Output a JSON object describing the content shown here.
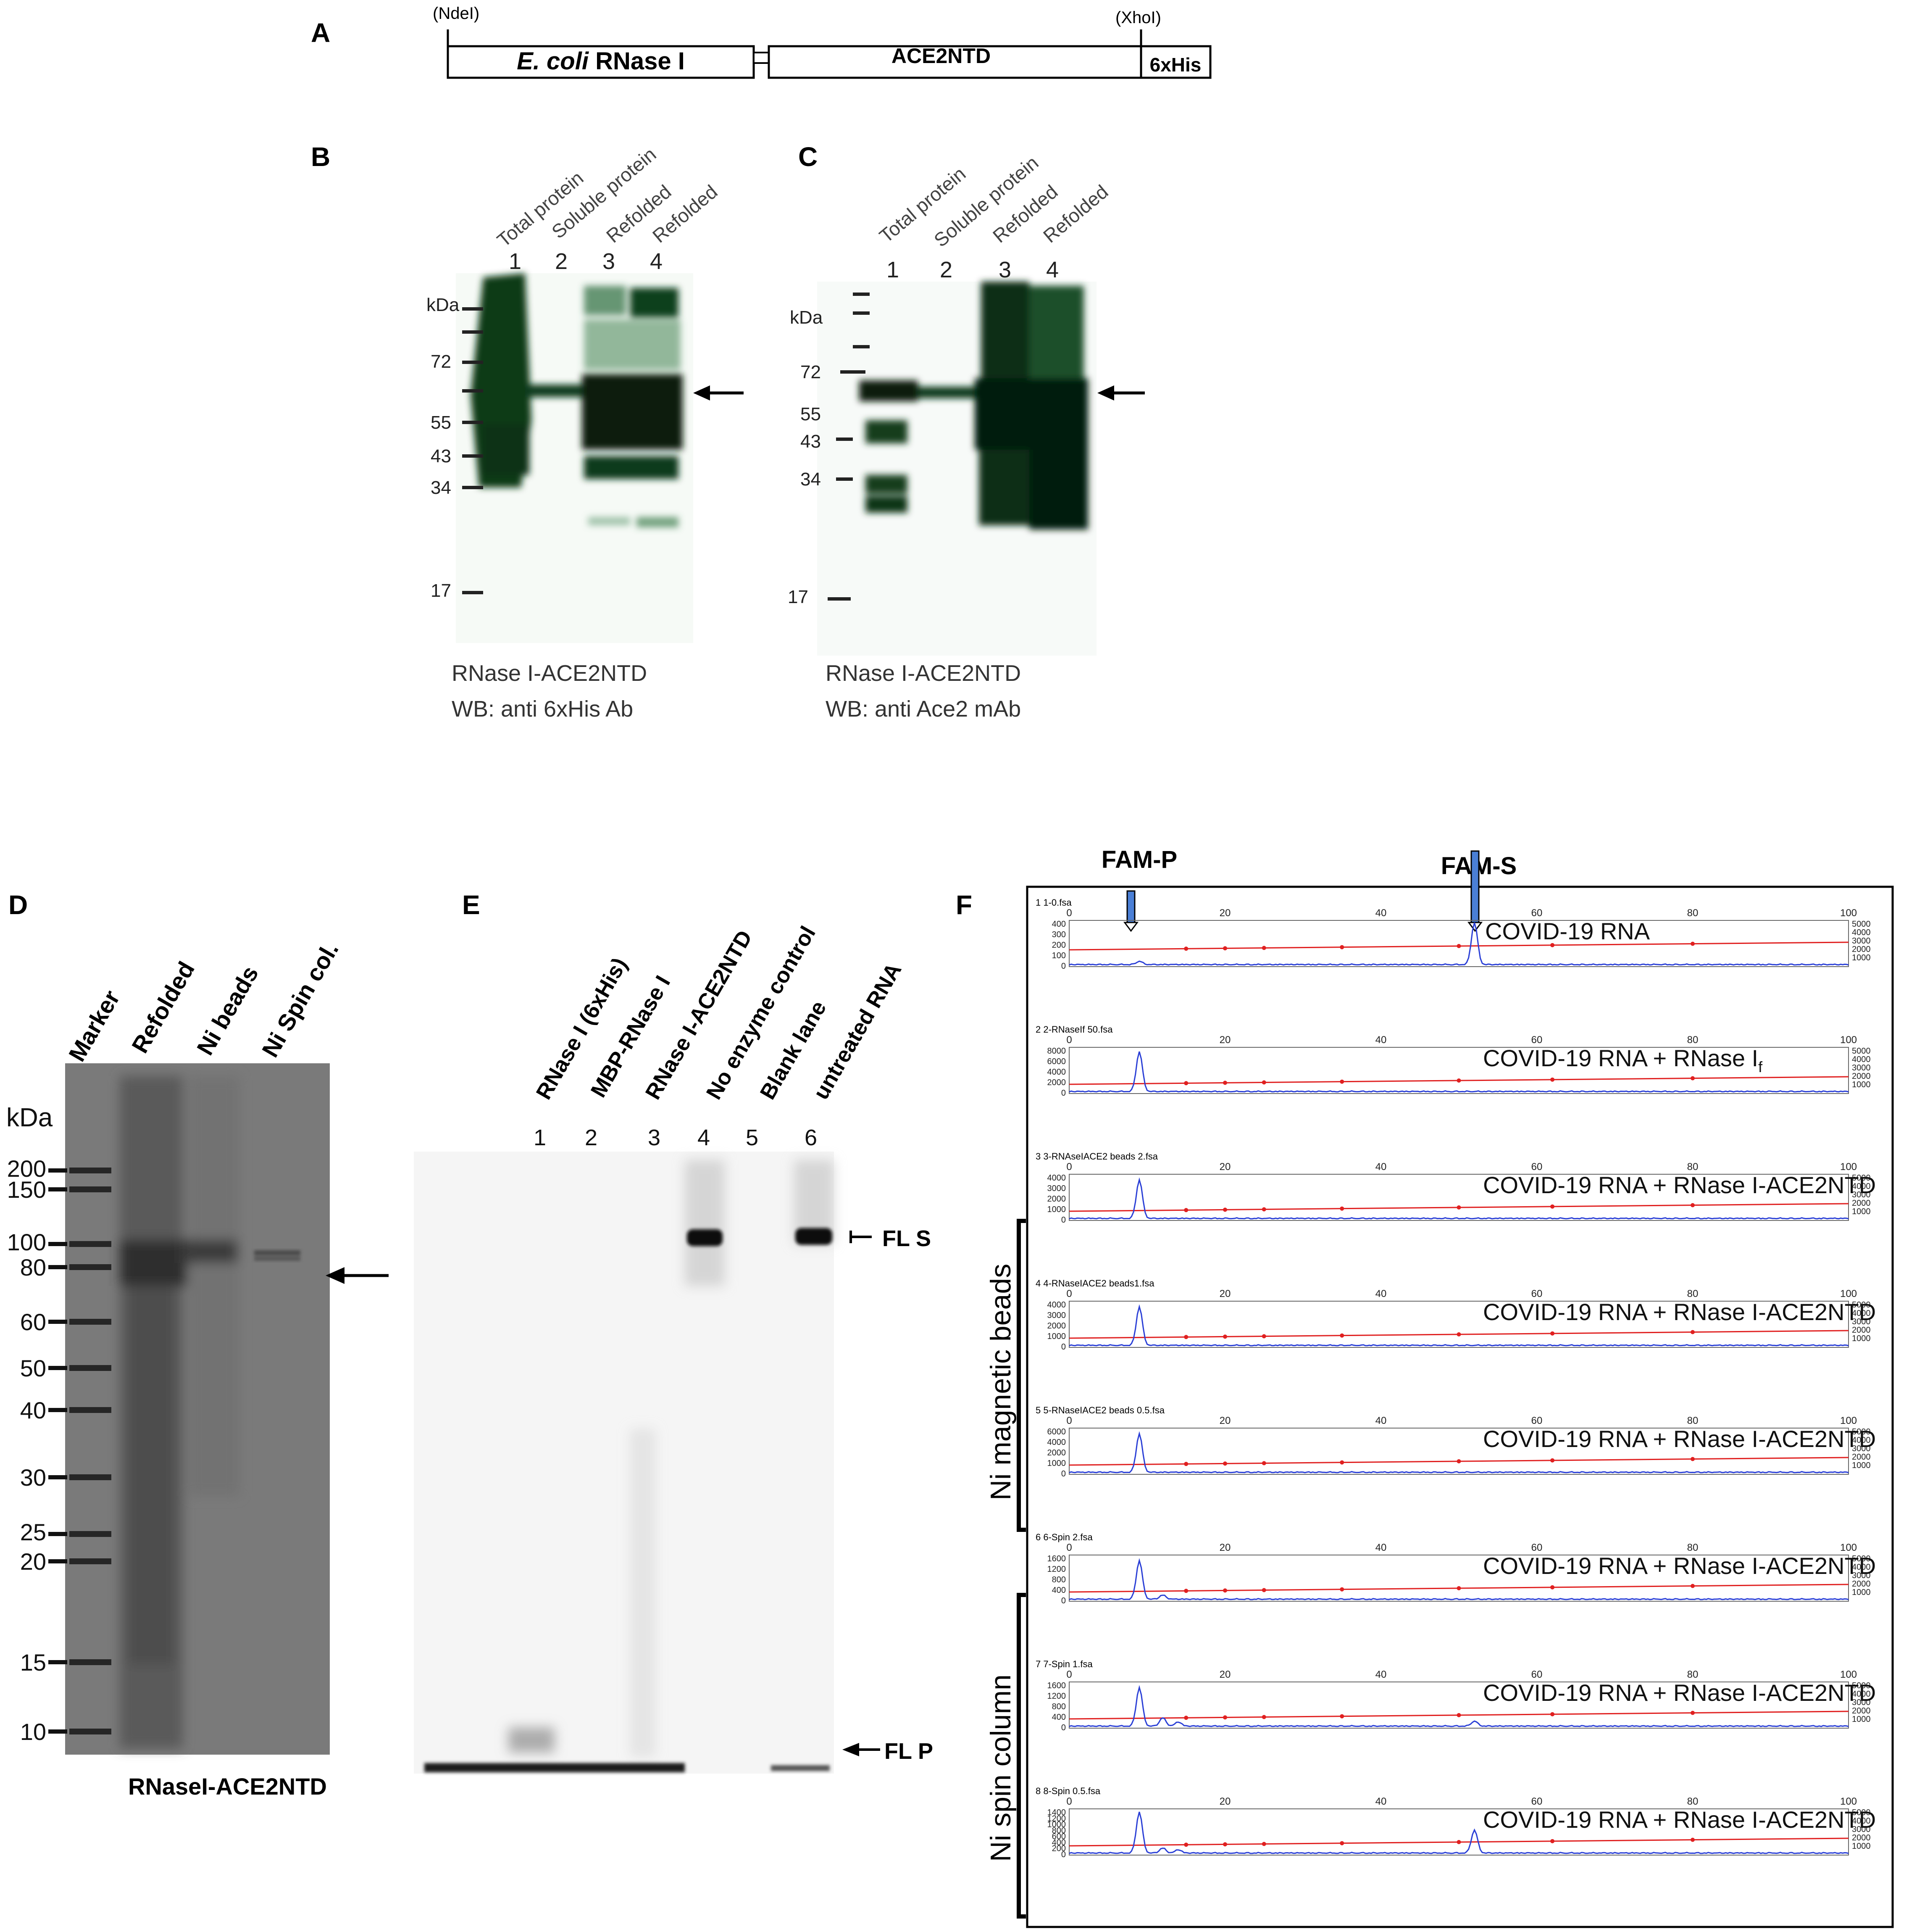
{
  "panelA": {
    "letter": "A",
    "site_left": "(NdeI)",
    "site_right": "(XhoI)",
    "box1_label": "RNase I",
    "box1_italic": "E. coli",
    "box2_label": "ACE2NTD",
    "tag_label": "6xHis"
  },
  "panelB": {
    "letter": "B",
    "lane_titles": [
      "Total protein",
      "Soluble protein",
      "Refolded",
      "Refolded"
    ],
    "lane_numbers": [
      "1",
      "2",
      "3",
      "4"
    ],
    "unit": "kDa",
    "markers": [
      "72",
      "55",
      "43",
      "34",
      "17"
    ],
    "caption1": "RNase I-ACE2NTD",
    "caption2": "WB: anti 6xHis Ab"
  },
  "panelC": {
    "letter": "C",
    "lane_titles": [
      "Total protein",
      "Soluble protein",
      "Refolded",
      "Refolded"
    ],
    "lane_numbers": [
      "1",
      "2",
      "3",
      "4"
    ],
    "unit": "kDa",
    "markers": [
      "72",
      "55",
      "43",
      "34",
      "17"
    ],
    "caption1": "RNase I-ACE2NTD",
    "caption2": "WB:  anti Ace2 mAb"
  },
  "panelD": {
    "letter": "D",
    "lane_titles": [
      "Marker",
      "Refolded",
      "Ni beads",
      "Ni Spin col."
    ],
    "unit": "kDa",
    "markers": [
      "200",
      "150",
      "100",
      "80",
      "60",
      "50",
      "40",
      "30",
      "25",
      "20",
      "15",
      "10"
    ],
    "caption": "RNaseI-ACE2NTD"
  },
  "panelE": {
    "letter": "E",
    "lane_titles": [
      "RNase I (6xHis)",
      "MBP-RNase I",
      "RNase I-ACE2NTD",
      "No enzyme control",
      "Blank lane",
      "untreated RNA"
    ],
    "lane_numbers": [
      "1",
      "2",
      "3",
      "4",
      "5",
      "6"
    ],
    "band_S": "FL S",
    "band_P": "FL P"
  },
  "panelF": {
    "letter": "F",
    "peak_P": "FAM-P",
    "peak_S": "FAM-S",
    "group1": "Ni magnetic beads",
    "group2": "Ni spin column",
    "x_ticks": [
      "0",
      "20",
      "40",
      "60",
      "80",
      "100"
    ],
    "right_ticks": [
      "5000",
      "4000",
      "3000",
      "2000",
      "1000"
    ],
    "traces": [
      {
        "header": "1  1-0.fsa",
        "label": "COVID-19 RNA",
        "y_ticks": [
          "400",
          "300",
          "200",
          "100",
          "0"
        ],
        "peaks": [
          {
            "x": 9,
            "h": 0.08
          },
          {
            "x": 52,
            "h": 1.0
          }
        ]
      },
      {
        "header": "2  2-RNaseIf 50.fsa",
        "label": "COVID-19 RNA + RNase I",
        "label_sub": "f",
        "y_ticks": [
          "8000",
          "6000",
          "4000",
          "2000",
          "0"
        ],
        "peaks": [
          {
            "x": 9,
            "h": 0.95
          }
        ]
      },
      {
        "header": "3  3-RNAseIACE2 beads 2.fsa",
        "label": "COVID-19 RNA + RNase I-ACE2NTD",
        "y_ticks": [
          "4000",
          "3000",
          "2000",
          "1000",
          "0"
        ],
        "peaks": [
          {
            "x": 9,
            "h": 0.92
          }
        ]
      },
      {
        "header": "4  4-RNaseIACE2 beads1.fsa",
        "label": "COVID-19 RNA + RNase I-ACE2NTD",
        "y_ticks": [
          "4000",
          "3000",
          "2000",
          "1000",
          "0"
        ],
        "peaks": [
          {
            "x": 9,
            "h": 0.92
          }
        ]
      },
      {
        "header": "5  5-RNaseIACE2 beads 0.5.fsa",
        "label": "COVID-19 RNA + RNase I-ACE2NTD",
        "y_ticks": [
          "6000",
          "4000",
          "2000",
          "1000",
          "0"
        ],
        "peaks": [
          {
            "x": 9,
            "h": 0.92
          }
        ]
      },
      {
        "header": "6  6-Spin 2.fsa",
        "label": "COVID-19 RNA + RNase I-ACE2NTD",
        "y_ticks": [
          "1600",
          "1200",
          "800",
          "400",
          "0"
        ],
        "peaks": [
          {
            "x": 9,
            "h": 0.92
          },
          {
            "x": 12,
            "h": 0.1
          }
        ]
      },
      {
        "header": "7  7-Spin 1.fsa",
        "label": "COVID-19 RNA + RNase I-ACE2NTD",
        "y_ticks": [
          "1600",
          "1200",
          "800",
          "400",
          "0"
        ],
        "peaks": [
          {
            "x": 9,
            "h": 0.92
          },
          {
            "x": 12,
            "h": 0.2
          },
          {
            "x": 14,
            "h": 0.1
          },
          {
            "x": 52,
            "h": 0.12
          }
        ]
      },
      {
        "header": "8  8-Spin 0.5.fsa",
        "label": "COVID-19 RNA + RNase I-ACE2NTD",
        "y_ticks": [
          "1400",
          "1200",
          "1000",
          "800",
          "600",
          "400",
          "200",
          "0"
        ],
        "peaks": [
          {
            "x": 9,
            "h": 0.98
          },
          {
            "x": 12,
            "h": 0.12
          },
          {
            "x": 14,
            "h": 0.08
          },
          {
            "x": 52,
            "h": 0.55
          }
        ]
      }
    ]
  },
  "colors": {
    "blot_green": "#0d3a1c",
    "trace_blue": "#2a3fd6",
    "trace_red": "#e02020",
    "frame": "#000000"
  }
}
